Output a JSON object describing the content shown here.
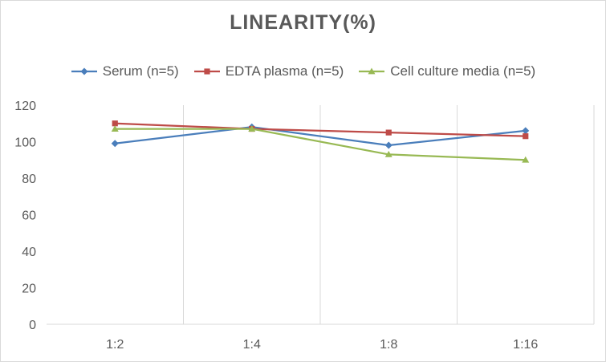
{
  "chart_data": {
    "type": "line",
    "title": "LINEARITY(%)",
    "categories": [
      "1:2",
      "1:4",
      "1:8",
      "1:16"
    ],
    "ylim": [
      0,
      120
    ],
    "yticks": [
      0,
      20,
      40,
      60,
      80,
      100,
      120
    ],
    "grid": "vertical",
    "legend_position": "top",
    "series": [
      {
        "name": "Serum (n=5)",
        "color": "#4a7ebb",
        "marker": "diamond",
        "values": [
          99,
          108,
          98,
          106
        ]
      },
      {
        "name": "EDTA plasma (n=5)",
        "color": "#be4b48",
        "marker": "square",
        "values": [
          110,
          107,
          105,
          103
        ]
      },
      {
        "name": "Cell culture media (n=5)",
        "color": "#98b954",
        "marker": "triangle",
        "values": [
          107,
          107,
          93,
          90
        ]
      }
    ]
  }
}
